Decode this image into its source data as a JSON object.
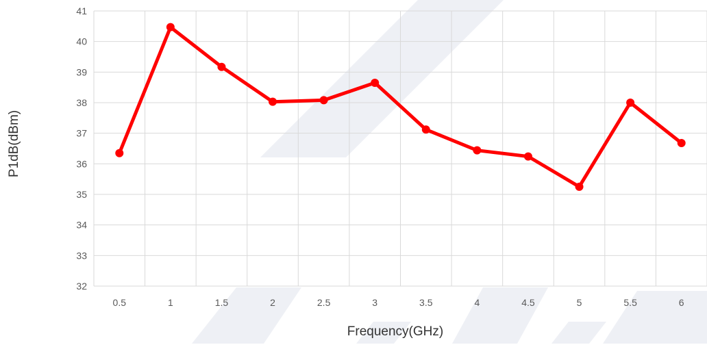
{
  "chart_data": {
    "type": "line",
    "xlabel": "Frequency(GHz)",
    "ylabel": "P1dB(dBm)",
    "categories": [
      "0.5",
      "1",
      "1.5",
      "2",
      "2.5",
      "3",
      "3.5",
      "4",
      "4.5",
      "5",
      "5.5",
      "6"
    ],
    "series": [
      {
        "values": [
          36.35,
          40.47,
          39.17,
          38.03,
          38.08,
          38.65,
          37.12,
          36.44,
          36.24,
          35.25,
          38.0,
          36.68
        ],
        "color": "#ff0000"
      }
    ],
    "ylim": [
      32,
      41
    ],
    "yticks": [
      "32",
      "33",
      "34",
      "35",
      "36",
      "37",
      "38",
      "39",
      "40",
      "41"
    ],
    "grid": true,
    "legend": "none"
  }
}
